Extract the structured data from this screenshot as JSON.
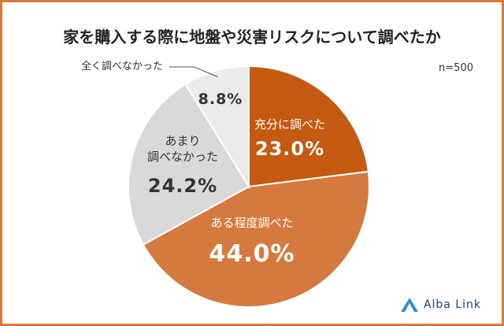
{
  "chart_data": {
    "type": "pie",
    "title": "家を購入する際に地盤や災害リスクについて調べたか",
    "annotation": "n=500",
    "source": "Alba Link",
    "categories": [
      "充分に調べた",
      "ある程度調べた",
      "あまり\n調べなかった",
      "全く調べなかった"
    ],
    "values": [
      23,
      44,
      24.2,
      8.8
    ],
    "value_labels": [
      "23.0%",
      "44.0%",
      "24.2%",
      "8.8%"
    ],
    "colors": [
      "#c55a11",
      "#d57a3e",
      "#d9d9d9",
      "#ebebeb"
    ]
  }
}
